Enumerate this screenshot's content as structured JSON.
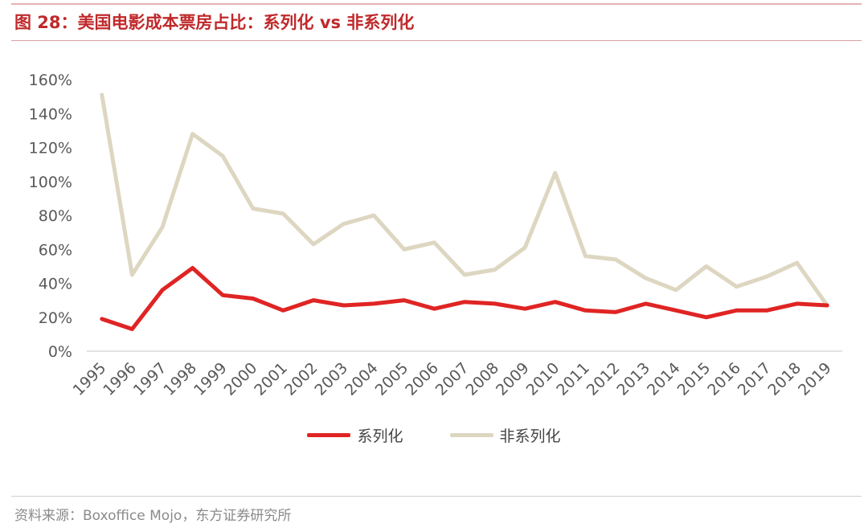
{
  "title": "图 28：美国电影成本票房占比：系列化 vs 非系列化",
  "source": "资料来源：Boxoffice Mojo，东方证券研究所",
  "colors": {
    "series": "#e02424",
    "nonseries": "#ddd6c1",
    "title": "#c0292b"
  },
  "chart_data": {
    "type": "line",
    "title": "图 28：美国电影成本票房占比：系列化 vs 非系列化",
    "xlabel": "",
    "ylabel": "",
    "x": [
      "1995",
      "1996",
      "1997",
      "1998",
      "1999",
      "2000",
      "2001",
      "2002",
      "2003",
      "2004",
      "2005",
      "2006",
      "2007",
      "2008",
      "2009",
      "2010",
      "2011",
      "2012",
      "2013",
      "2014",
      "2015",
      "2016",
      "2017",
      "2018",
      "2019"
    ],
    "ylim": [
      0,
      160
    ],
    "yticks": [
      "0%",
      "20%",
      "40%",
      "60%",
      "80%",
      "100%",
      "120%",
      "140%",
      "160%"
    ],
    "grid": false,
    "legend_position": "bottom",
    "series": [
      {
        "name": "系列化",
        "values": [
          19,
          13,
          36,
          49,
          33,
          31,
          24,
          30,
          27,
          28,
          30,
          25,
          29,
          28,
          25,
          29,
          24,
          23,
          28,
          24,
          20,
          24,
          24,
          28,
          27
        ]
      },
      {
        "name": "非系列化",
        "values": [
          151,
          45,
          73,
          128,
          115,
          84,
          81,
          63,
          75,
          80,
          60,
          64,
          45,
          48,
          61,
          105,
          56,
          54,
          43,
          36,
          50,
          38,
          44,
          52,
          27
        ]
      }
    ]
  }
}
